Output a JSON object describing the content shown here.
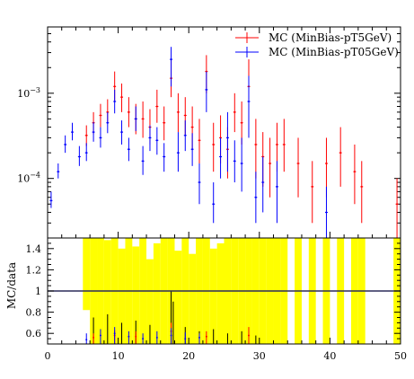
{
  "chart_data": [
    {
      "type": "scatter",
      "panel": "main",
      "y_scale": "log",
      "xlim": [
        0,
        50
      ],
      "ylim": [
        2e-05,
        0.006
      ],
      "y_tick_labels": [
        {
          "value": 0.0001,
          "base": "10",
          "exp": "−4"
        },
        {
          "value": 0.001,
          "base": "10",
          "exp": "−3"
        }
      ],
      "legend_position": "top-right",
      "series": [
        {
          "name": "MC (MinBias-pT5GeV)",
          "color": "#ff0000",
          "points": [
            [
              5.5,
              0.00032,
              0.00042,
              0.00024
            ],
            [
              6.5,
              0.00045,
              0.0006,
              0.00033
            ],
            [
              7.5,
              0.00055,
              0.00075,
              0.0004
            ],
            [
              8.5,
              0.0006,
              0.00085,
              0.00045
            ],
            [
              9.5,
              0.0012,
              0.0018,
              0.0008
            ],
            [
              10.5,
              0.0009,
              0.0013,
              0.0006
            ],
            [
              11.5,
              0.0006,
              0.0009,
              0.0004
            ],
            [
              12.5,
              0.0005,
              0.00075,
              0.00033
            ],
            [
              13.5,
              0.0005,
              0.0008,
              0.0003
            ],
            [
              14.5,
              0.0004,
              0.00065,
              0.00025
            ],
            [
              15.5,
              0.0007,
              0.0011,
              0.00045
            ],
            [
              16.5,
              0.00045,
              0.0007,
              0.00028
            ],
            [
              17.5,
              0.0015,
              0.0025,
              0.0009
            ],
            [
              18.5,
              0.0006,
              0.001,
              0.00035
            ],
            [
              19.5,
              0.00055,
              0.0009,
              0.00032
            ],
            [
              20.5,
              0.0004,
              0.0007,
              0.00022
            ],
            [
              21.5,
              0.00028,
              0.0005,
              0.00015
            ],
            [
              22.5,
              0.0018,
              0.0028,
              0.001
            ],
            [
              23.5,
              0.00025,
              0.00045,
              0.00012
            ],
            [
              24.5,
              0.0003,
              0.00055,
              0.00015
            ],
            [
              25.5,
              0.00022,
              0.0004,
              0.0001
            ],
            [
              26.5,
              0.0006,
              0.001,
              0.00035
            ],
            [
              27.5,
              0.00045,
              0.0008,
              0.00025
            ],
            [
              28.5,
              0.0012,
              0.0025,
              0.0005
            ],
            [
              29.5,
              0.00025,
              0.0005,
              0.0001
            ],
            [
              30.5,
              0.00018,
              0.00035,
              8e-05
            ],
            [
              31.5,
              0.00015,
              0.0003,
              6e-05
            ],
            [
              32.5,
              0.00025,
              0.00045,
              0.00012
            ],
            [
              33.5,
              0.00025,
              0.0005,
              0.00012
            ],
            [
              35.5,
              0.00015,
              0.0003,
              6e-05
            ],
            [
              37.5,
              8e-05,
              0.00016,
              3e-05
            ],
            [
              39.5,
              0.00015,
              0.0003,
              6e-05
            ],
            [
              41.5,
              0.0002,
              0.0004,
              8e-05
            ],
            [
              43.5,
              0.00012,
              0.00025,
              5e-05
            ],
            [
              44.5,
              8e-05,
              0.00016,
              3e-05
            ],
            [
              49.5,
              5e-05,
              0.0001,
              2e-05
            ]
          ]
        },
        {
          "name": "MC (MinBias-pT05GeV)",
          "color": "#0000ff",
          "points": [
            [
              0.5,
              5.5e-05,
              7e-05,
              4.5e-05
            ],
            [
              1.5,
              0.00012,
              0.00015,
              0.0001
            ],
            [
              2.5,
              0.00025,
              0.00032,
              0.0002
            ],
            [
              3.5,
              0.00035,
              0.00045,
              0.00028
            ],
            [
              4.5,
              0.00018,
              0.00024,
              0.00014
            ],
            [
              5.5,
              0.0002,
              0.00026,
              0.00016
            ],
            [
              6.5,
              0.00035,
              0.00046,
              0.00027
            ],
            [
              7.5,
              0.0003,
              0.0004,
              0.00023
            ],
            [
              8.5,
              0.00045,
              0.0006,
              0.00034
            ],
            [
              9.5,
              0.0008,
              0.0011,
              0.00058
            ],
            [
              10.5,
              0.00035,
              0.00048,
              0.00025
            ],
            [
              11.5,
              0.00022,
              0.0003,
              0.00016
            ],
            [
              12.5,
              0.0005,
              0.0007,
              0.00036
            ],
            [
              13.5,
              0.00016,
              0.00024,
              0.00011
            ],
            [
              14.5,
              0.0003,
              0.00042,
              0.00021
            ],
            [
              15.5,
              0.00028,
              0.0004,
              0.00019
            ],
            [
              16.5,
              0.00018,
              0.00026,
              0.00012
            ],
            [
              17.5,
              0.0025,
              0.0035,
              0.0012
            ],
            [
              18.5,
              0.0002,
              0.00035,
              0.00012
            ],
            [
              19.5,
              0.00032,
              0.00048,
              0.00021
            ],
            [
              20.5,
              0.00022,
              0.00034,
              0.00014
            ],
            [
              21.5,
              9e-05,
              0.00015,
              5e-05
            ],
            [
              22.5,
              0.0011,
              0.0018,
              0.0006
            ],
            [
              23.5,
              5e-05,
              9e-05,
              3e-05
            ],
            [
              24.5,
              0.00018,
              0.0003,
              0.0001
            ],
            [
              25.5,
              0.0003,
              0.0006,
              0.00012
            ],
            [
              26.5,
              0.00016,
              0.00028,
              9e-05
            ],
            [
              27.5,
              0.00015,
              0.0003,
              7e-05
            ],
            [
              28.5,
              0.0008,
              0.0016,
              0.0003
            ],
            [
              29.5,
              6e-05,
              0.00012,
              3e-05
            ],
            [
              30.5,
              9e-05,
              0.00018,
              4e-05
            ],
            [
              32.5,
              8e-05,
              0.00016,
              3e-05
            ],
            [
              39.5,
              4e-05,
              8e-05,
              2e-05
            ]
          ]
        }
      ]
    },
    {
      "type": "scatter",
      "panel": "ratio",
      "ylabel": "MC/data",
      "xlim": [
        0,
        50
      ],
      "ylim": [
        0.5,
        1.5
      ],
      "x_ticks": [
        0,
        10,
        20,
        30,
        40,
        50
      ],
      "y_ticks": [
        0.6,
        0.8,
        1,
        1.2,
        1.4
      ],
      "reference_line": 1.0,
      "band_color": "#ffff00",
      "band_bins": [
        [
          5,
          6,
          0.82,
          1.5
        ],
        [
          6,
          7,
          0.5,
          1.5
        ],
        [
          7,
          8,
          0.5,
          1.5
        ],
        [
          8,
          9,
          0.5,
          1.48
        ],
        [
          9,
          10,
          0.5,
          1.5
        ],
        [
          10,
          11,
          0.5,
          1.4
        ],
        [
          11,
          12,
          0.5,
          1.5
        ],
        [
          12,
          13,
          0.5,
          1.42
        ],
        [
          13,
          14,
          0.5,
          1.5
        ],
        [
          14,
          15,
          0.5,
          1.3
        ],
        [
          15,
          16,
          0.5,
          1.45
        ],
        [
          16,
          17,
          0.5,
          1.5
        ],
        [
          17,
          18,
          0.5,
          1.5
        ],
        [
          18,
          19,
          0.5,
          1.38
        ],
        [
          19,
          20,
          0.5,
          1.5
        ],
        [
          20,
          21,
          0.5,
          1.35
        ],
        [
          21,
          22,
          0.5,
          1.5
        ],
        [
          22,
          23,
          0.5,
          1.5
        ],
        [
          23,
          24,
          0.5,
          1.4
        ],
        [
          24,
          25,
          0.5,
          1.45
        ],
        [
          25,
          26,
          0.5,
          1.5
        ],
        [
          26,
          27,
          0.5,
          1.5
        ],
        [
          27,
          28,
          0.5,
          1.5
        ],
        [
          28,
          29,
          0.5,
          1.5
        ],
        [
          29,
          30,
          0.5,
          1.5
        ],
        [
          30,
          31,
          0.5,
          1.5
        ],
        [
          31,
          32,
          0.5,
          1.5
        ],
        [
          32,
          33,
          0.5,
          1.5
        ],
        [
          33,
          34,
          0.5,
          1.5
        ],
        [
          35,
          36,
          0.5,
          1.5
        ],
        [
          37,
          38,
          0.5,
          1.5
        ],
        [
          39,
          40,
          0.5,
          1.5
        ],
        [
          41,
          42,
          0.5,
          1.5
        ],
        [
          43,
          44,
          0.5,
          1.5
        ],
        [
          44,
          45,
          0.5,
          1.5
        ],
        [
          49,
          50,
          0.5,
          1.5
        ]
      ],
      "black_error_bars": [
        [
          6.5,
          0.5,
          0.75
        ],
        [
          8.5,
          0.5,
          0.78
        ],
        [
          10.5,
          0.5,
          0.7
        ],
        [
          12.5,
          0.5,
          0.72
        ],
        [
          14.5,
          0.5,
          0.68
        ],
        [
          17.5,
          0.5,
          1.0
        ],
        [
          17.8,
          0.5,
          0.9
        ],
        [
          19.5,
          0.5,
          0.66
        ],
        [
          21.5,
          0.5,
          0.62
        ],
        [
          23.5,
          0.5,
          0.64
        ],
        [
          25.5,
          0.5,
          0.6
        ],
        [
          27.5,
          0.5,
          0.62
        ],
        [
          29.5,
          0.5,
          0.58
        ]
      ],
      "series": [
        {
          "name": "MC (MinBias-pT5GeV)",
          "color": "#ff0000",
          "points": [
            [
              6.5,
              0.56,
              0.6,
              0.5
            ],
            [
              9.5,
              0.58,
              0.63,
              0.5
            ],
            [
              12.5,
              0.57,
              0.62,
              0.5
            ],
            [
              17.5,
              0.62,
              0.7,
              0.5
            ],
            [
              22.5,
              0.57,
              0.62,
              0.5
            ],
            [
              28.5,
              0.58,
              0.66,
              0.5
            ]
          ]
        },
        {
          "name": "MC (MinBias-pT05GeV)",
          "color": "#0000ff",
          "points": [
            [
              5.5,
              0.54,
              0.6,
              0.5
            ],
            [
              7.5,
              0.58,
              0.64,
              0.5
            ],
            [
              9.5,
              0.6,
              0.66,
              0.5
            ],
            [
              11.5,
              0.57,
              0.62,
              0.5
            ],
            [
              13.5,
              0.55,
              0.6,
              0.5
            ],
            [
              15.5,
              0.56,
              0.62,
              0.5
            ],
            [
              17.5,
              0.58,
              0.65,
              0.5
            ],
            [
              19.5,
              0.55,
              0.61,
              0.5
            ],
            [
              21.5,
              0.56,
              0.6,
              0.5
            ]
          ]
        }
      ]
    }
  ]
}
